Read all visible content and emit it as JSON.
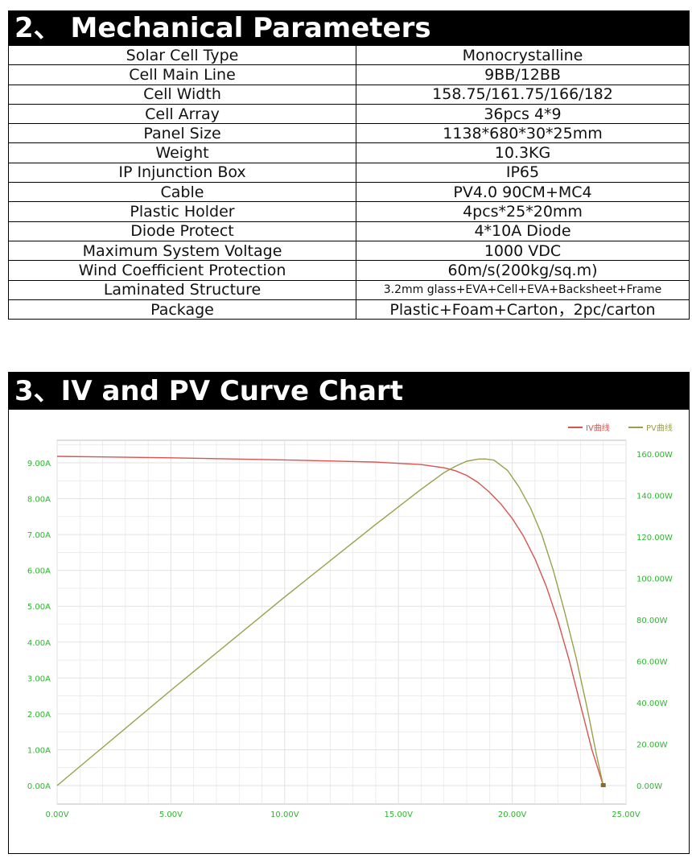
{
  "section1": {
    "title": "2、 Mechanical Parameters"
  },
  "params": [
    {
      "label": "Solar Cell Type",
      "value": "Monocrystalline"
    },
    {
      "label": "Cell Main Line",
      "value": "9BB/12BB"
    },
    {
      "label": "Cell Width",
      "value": "158.75/161.75/166/182"
    },
    {
      "label": "Cell Array",
      "value": "36pcs 4*9"
    },
    {
      "label": "Panel Size",
      "value": "1138*680*30*25mm"
    },
    {
      "label": "Weight",
      "value": "10.3KG"
    },
    {
      "label": "IP Injunction Box",
      "value": "IP65"
    },
    {
      "label": "Cable",
      "value": "PV4.0 90CM+MC4"
    },
    {
      "label": "Plastic Holder",
      "value": "4pcs*25*20mm"
    },
    {
      "label": "Diode Protect",
      "value": "4*10A Diode"
    },
    {
      "label": "Maximum System Voltage",
      "value": "1000 VDC"
    },
    {
      "label": "Wind Coefficient Protection",
      "value": "60m/s(200kg/sq.m)"
    },
    {
      "label": "Laminated Structure",
      "value": "3.2mm glass+EVA+Cell+EVA+Backsheet+Frame"
    },
    {
      "label": "Package",
      "value": "Plastic+Foam+Carton，2pc/carton"
    }
  ],
  "section2": {
    "title": "3、IV and PV Curve Chart"
  },
  "colors": {
    "iv": "#d9534f",
    "pv": "#9aa04a",
    "axis_text": "#2fb52f",
    "grid": "#e2e2e2"
  },
  "chart_data": {
    "type": "line",
    "x_ticks": [
      "0.00V",
      "5.00V",
      "10.00V",
      "15.00V",
      "20.00V",
      "25.00V"
    ],
    "y_left_ticks": [
      "0.00A",
      "1.00A",
      "2.00A",
      "3.00A",
      "4.00A",
      "5.00A",
      "6.00A",
      "7.00A",
      "8.00A",
      "9.00A"
    ],
    "y_right_ticks": [
      "0.00W",
      "20.00W",
      "40.00W",
      "60.00W",
      "80.00W",
      "100.00W",
      "120.00W",
      "140.00W",
      "160.00W"
    ],
    "xlim": [
      0,
      25
    ],
    "y_left_lim": [
      0,
      10
    ],
    "y_right_lim": [
      0,
      160
    ],
    "grid": true,
    "legend_position": "top-right",
    "series": [
      {
        "name": "IV曲线",
        "axis": "left",
        "x": [
          0,
          5,
          10,
          14,
          16,
          17,
          17.5,
          18,
          18.5,
          19,
          19.5,
          20,
          20.5,
          21,
          21.5,
          22,
          22.5,
          23,
          23.5,
          23.9,
          24.0
        ],
        "y": [
          9.18,
          9.14,
          9.08,
          9.02,
          8.95,
          8.86,
          8.78,
          8.65,
          8.45,
          8.18,
          7.85,
          7.45,
          6.95,
          6.32,
          5.55,
          4.6,
          3.5,
          2.25,
          1.0,
          0.2,
          0.0
        ]
      },
      {
        "name": "PV曲线",
        "axis": "right",
        "x": [
          0,
          5,
          10,
          14,
          16,
          17,
          17.5,
          18,
          18.5,
          18.8,
          19.2,
          19.8,
          20.3,
          20.8,
          21.3,
          21.8,
          22.3,
          22.8,
          23.3,
          23.7,
          24.0
        ],
        "y": [
          0,
          46,
          91,
          126,
          143,
          151,
          154,
          156.5,
          157.5,
          157.6,
          157,
          152,
          144,
          134,
          121,
          104,
          84,
          62,
          37,
          15,
          0
        ]
      }
    ]
  }
}
